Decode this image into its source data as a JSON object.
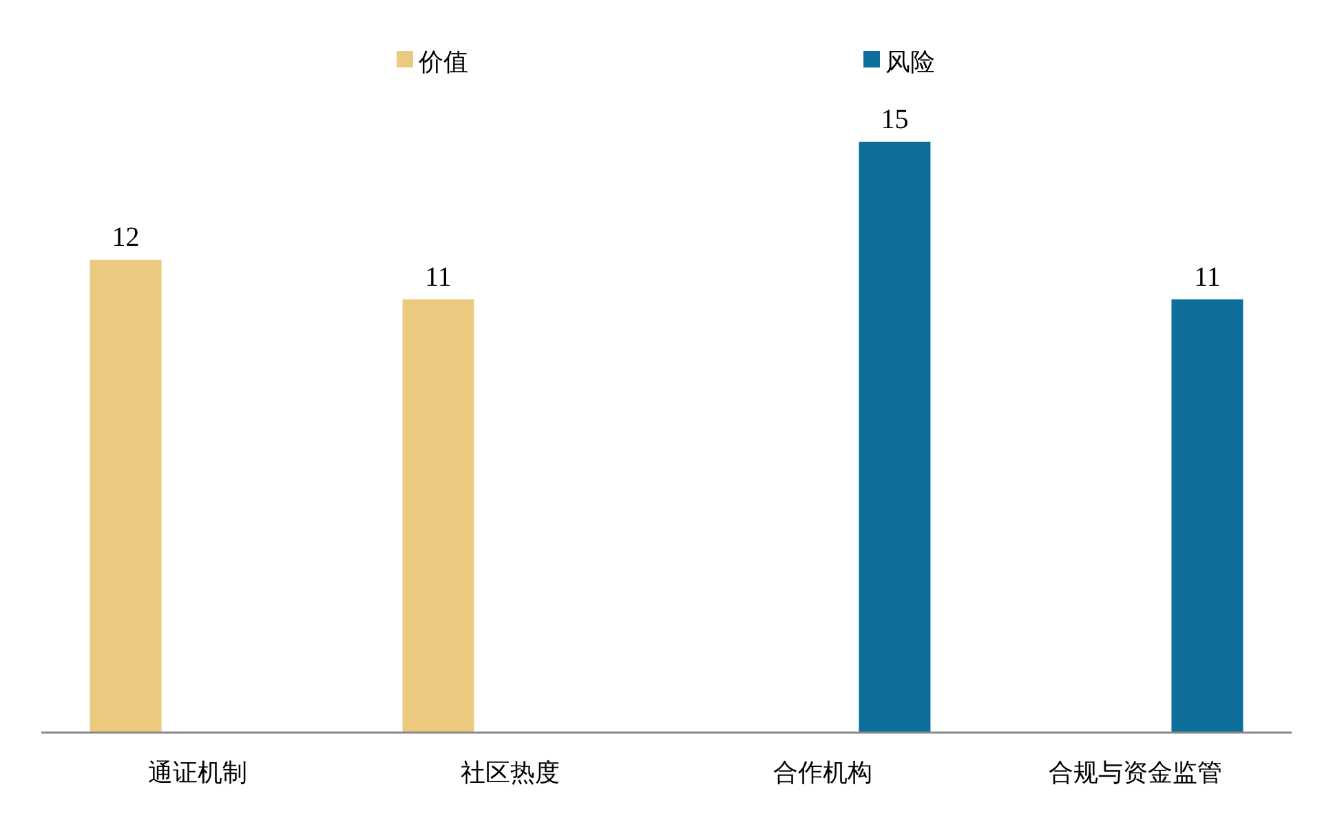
{
  "chart_data": {
    "type": "bar",
    "categories": [
      "通证机制",
      "社区热度",
      "合作机构",
      "合规与资金监管"
    ],
    "series": [
      {
        "name": "价值",
        "color": "#ebca80",
        "values": [
          12,
          11,
          null,
          null
        ]
      },
      {
        "name": "风险",
        "color": "#0e6e9a",
        "values": [
          null,
          null,
          15,
          11
        ]
      }
    ],
    "data_labels": true,
    "legend": "top"
  }
}
